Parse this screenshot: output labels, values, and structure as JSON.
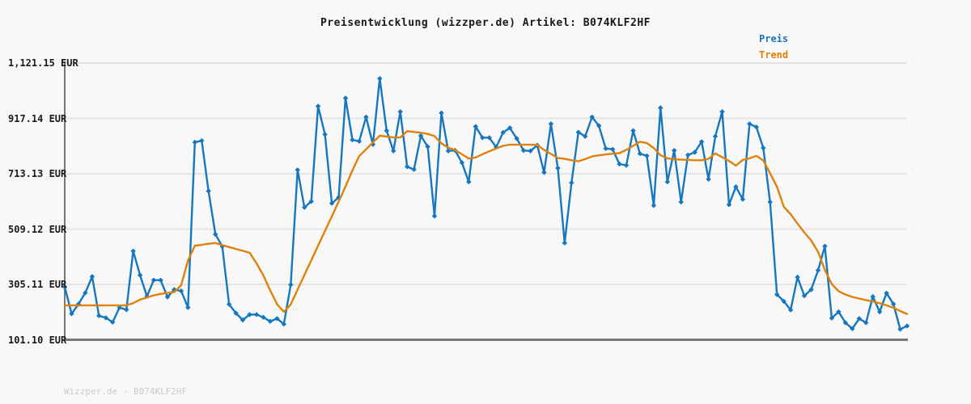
{
  "footer": {
    "text": "Wizzper.de - B074KLF2HF"
  },
  "style": {
    "background": "#f8f8f8",
    "grid_color": "#e4e4e4",
    "axis_color": "#787878",
    "title_color": "#1a1a1a",
    "tick_label_color": "#1a1a1a",
    "footer_color": "#c9c9c9",
    "preis_color": "#1577c0",
    "trend_color": "#e0810d"
  },
  "chart_data": {
    "type": "line",
    "title": "Preisentwicklung (wizzper.de) Artikel: B074KLF2HF",
    "xlabel": "",
    "ylabel": "",
    "x_axis_labels_visible": false,
    "grid": "horizontal",
    "legend_position": "top-right",
    "ylim": [
      101.1,
      1121.15
    ],
    "yticks": [
      {
        "label": "1,121.15 EUR",
        "value": 1121.15
      },
      {
        "label": "917.14 EUR",
        "value": 917.14
      },
      {
        "label": "713.13 EUR",
        "value": 713.13
      },
      {
        "label": "509.12 EUR",
        "value": 509.12
      },
      {
        "label": "305.11 EUR",
        "value": 305.11
      },
      {
        "label": "101.10 EUR",
        "value": 101.1
      }
    ],
    "series": [
      {
        "name": "Preis",
        "color": "#1577c0",
        "marker": "diamond",
        "values": [
          296,
          197,
          232,
          274,
          334,
          190,
          182,
          166,
          220,
          212,
          428,
          339,
          261,
          321,
          321,
          259,
          286,
          281,
          220,
          829,
          835,
          649,
          490,
          445,
          232,
          199,
          174,
          194,
          194,
          184,
          169,
          179,
          159,
          304,
          727,
          589,
          611,
          962,
          858,
          604,
          626,
          992,
          838,
          833,
          922,
          821,
          1064,
          872,
          797,
          942,
          739,
          729,
          853,
          813,
          557,
          937,
          797,
          799,
          754,
          683,
          887,
          846,
          846,
          811,
          865,
          882,
          843,
          799,
          797,
          818,
          718,
          897,
          734,
          458,
          680,
          866,
          851,
          922,
          890,
          806,
          803,
          749,
          744,
          872,
          787,
          779,
          596,
          956,
          683,
          799,
          609,
          782,
          792,
          831,
          693,
          851,
          942,
          599,
          665,
          619,
          897,
          885,
          808,
          609,
          268,
          243,
          211,
          332,
          263,
          286,
          357,
          446,
          181,
          204,
          164,
          142,
          179,
          164,
          260,
          204,
          273,
          233,
          140,
          152
        ]
      },
      {
        "name": "Trend",
        "color": "#e0810d",
        "marker": "none",
        "values": [
          228,
          228,
          228,
          228,
          228,
          228,
          228,
          228,
          228,
          228,
          236,
          249,
          257,
          265,
          270,
          274,
          277,
          302,
          393,
          448,
          451,
          455,
          458,
          450,
          443,
          436,
          429,
          422,
          383,
          339,
          283,
          232,
          204,
          231,
          286,
          340,
          394,
          448,
          502,
          556,
          610,
          666,
          725,
          778,
          803,
          829,
          853,
          850,
          847,
          847,
          870,
          867,
          864,
          860,
          852,
          825,
          809,
          800,
          785,
          769,
          773,
          785,
          796,
          806,
          816,
          820,
          820,
          820,
          820,
          819,
          801,
          786,
          771,
          768,
          763,
          759,
          767,
          777,
          781,
          784,
          787,
          789,
          801,
          816,
          831,
          826,
          808,
          781,
          770,
          766,
          765,
          764,
          763,
          763,
          768,
          788,
          774,
          760,
          743,
          764,
          770,
          779,
          762,
          715,
          665,
          591,
          564,
          529,
          497,
          467,
          425,
          358,
          307,
          280,
          268,
          259,
          253,
          247,
          242,
          236,
          228,
          219,
          207,
          196
        ]
      }
    ]
  }
}
